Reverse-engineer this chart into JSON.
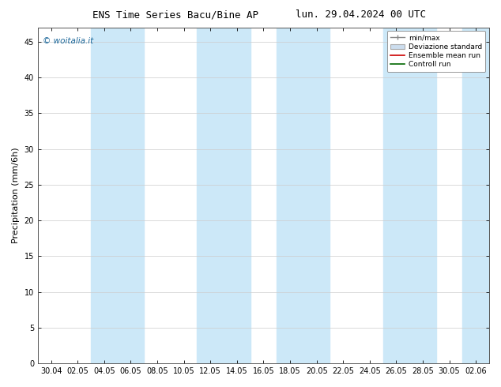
{
  "title_left": "ENS Time Series Bacu/Bine AP",
  "title_right": "lun. 29.04.2024 00 UTC",
  "ylabel": "Precipitation (mm/6h)",
  "watermark": "© woitalia.it",
  "ylim": [
    0,
    47
  ],
  "yticks": [
    0,
    5,
    10,
    15,
    20,
    25,
    30,
    35,
    40,
    45
  ],
  "x_labels": [
    "30.04",
    "02.05",
    "04.05",
    "06.05",
    "08.05",
    "10.05",
    "12.05",
    "14.05",
    "16.05",
    "18.05",
    "20.05",
    "22.05",
    "24.05",
    "26.05",
    "28.05",
    "30.05",
    "02.06"
  ],
  "shade_indices": [
    2,
    3,
    6,
    7,
    9,
    10,
    13,
    14,
    16
  ],
  "shade_color": "#cce8f8",
  "background_color": "#ffffff",
  "grid_color": "#cccccc",
  "legend_entries": [
    "min/max",
    "Deviazione standard",
    "Ensemble mean run",
    "Controll run"
  ],
  "title_fontsize": 9,
  "tick_fontsize": 7,
  "ylabel_fontsize": 8,
  "watermark_color": "#1a6699"
}
